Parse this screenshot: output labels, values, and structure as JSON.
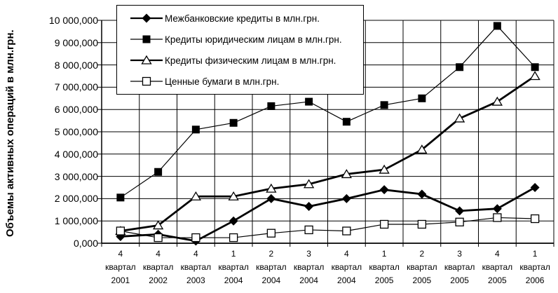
{
  "chart_data": {
    "type": "line",
    "title": "",
    "xlabel": "",
    "ylabel": "Объемы активных операций в млн.грн.",
    "ylim": [
      0,
      10000000
    ],
    "y_tick_step": 1000000,
    "y_tick_labels": [
      "0,000",
      "1 000,000",
      "2 000,000",
      "3 000,000",
      "4 000,000",
      "5 000,000",
      "6 000,000",
      "7 000,000",
      "8 000,000",
      "9 000,000",
      "10 000,000"
    ],
    "grid": true,
    "legend_position": "top-inside",
    "categories": [
      "4 квартал 2001",
      "4 квартал 2002",
      "4 квартал 2003",
      "1 квартал 2004",
      "2 квартал 2004",
      "3 квартал 2004",
      "4 квартал 2004",
      "1 квартал 2005",
      "2 квартал 2005",
      "3 квартал 2005",
      "4 квартал 2005",
      "1 квартал 2006"
    ],
    "series": [
      {
        "name": "Межбанковские кредиты в млн.грн.",
        "marker": "filled-diamond",
        "line": "thick",
        "values": [
          300000,
          400000,
          100000,
          1000000,
          2000000,
          1650000,
          2000000,
          2400000,
          2200000,
          1450000,
          1550000,
          2500000
        ]
      },
      {
        "name": "Кредиты юридическим лицам в млн.грн.",
        "marker": "filled-square",
        "line": "thin",
        "values": [
          2050000,
          3200000,
          5100000,
          5400000,
          6150000,
          6350000,
          5450000,
          6200000,
          6500000,
          7900000,
          9750000,
          7900000
        ]
      },
      {
        "name": "Кредиты физическим лицам в млн.грн.",
        "marker": "open-triangle",
        "line": "thick",
        "values": [
          550000,
          800000,
          2100000,
          2100000,
          2450000,
          2650000,
          3100000,
          3300000,
          4200000,
          5600000,
          6350000,
          7500000
        ]
      },
      {
        "name": "Ценные бумаги в млн.грн.",
        "marker": "open-square",
        "line": "thin",
        "values": [
          550000,
          250000,
          250000,
          250000,
          450000,
          600000,
          550000,
          850000,
          850000,
          950000,
          1150000,
          1100000
        ]
      }
    ],
    "colors": {
      "foreground": "#000000",
      "background": "#ffffff"
    }
  }
}
